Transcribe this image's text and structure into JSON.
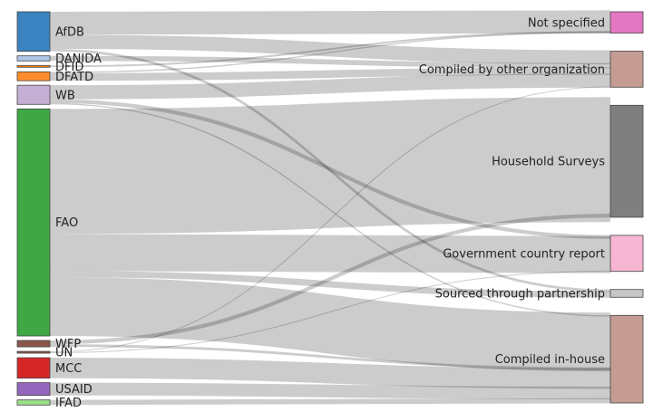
{
  "chart_data": {
    "type": "sankey",
    "sources": [
      {
        "id": "afdb",
        "label": "AfDB",
        "color": "#3b82c0"
      },
      {
        "id": "danida",
        "label": "DANIDA",
        "color": "#aec7e8"
      },
      {
        "id": "dfid",
        "label": "DFID",
        "color": "#ff7f0e"
      },
      {
        "id": "dfatd",
        "label": "DFATD",
        "color": "#ff8c2e"
      },
      {
        "id": "wb",
        "label": "WB",
        "color": "#c5b0d5"
      },
      {
        "id": "fao",
        "label": "FAO",
        "color": "#3fa845"
      },
      {
        "id": "wfp",
        "label": "WFP",
        "color": "#8c564b"
      },
      {
        "id": "un",
        "label": "UN",
        "color": "#8c564b"
      },
      {
        "id": "mcc",
        "label": "MCC",
        "color": "#d62728"
      },
      {
        "id": "usaid",
        "label": "USAID",
        "color": "#9467bd"
      },
      {
        "id": "ifad",
        "label": "IFAD",
        "color": "#98df8a"
      }
    ],
    "targets": [
      {
        "id": "not_specified",
        "label": "Not specified",
        "color": "#e377c2"
      },
      {
        "id": "other_org",
        "label": "Compiled by other organization",
        "color": "#c49c94"
      },
      {
        "id": "household",
        "label": "Household Surveys",
        "color": "#7f7f7f"
      },
      {
        "id": "gov_report",
        "label": "Government country report",
        "color": "#f7b6d2"
      },
      {
        "id": "partnership",
        "label": "Sourced through partnership",
        "color": "#c7c7c7"
      },
      {
        "id": "in_house",
        "label": "Compiled in-house",
        "color": "#c49c94"
      }
    ],
    "links": [
      {
        "source": "afdb",
        "target": "not_specified",
        "value": 18
      },
      {
        "source": "afdb",
        "target": "other_org",
        "value": 11
      },
      {
        "source": "afdb",
        "target": "partnership",
        "value": 2
      },
      {
        "source": "danida",
        "target": "other_org",
        "value": 4
      },
      {
        "source": "dfid",
        "target": "not_specified",
        "value": 0.2
      },
      {
        "source": "dfatd",
        "target": "other_org",
        "value": 6
      },
      {
        "source": "dfatd",
        "target": "not_specified",
        "value": 1
      },
      {
        "source": "wb",
        "target": "other_org",
        "value": 11
      },
      {
        "source": "wb",
        "target": "gov_report",
        "value": 3
      },
      {
        "source": "wb",
        "target": "in_house",
        "value": 1
      },
      {
        "source": "fao",
        "target": "household",
        "value": 98
      },
      {
        "source": "fao",
        "target": "gov_report",
        "value": 29
      },
      {
        "source": "fao",
        "target": "partnership",
        "value": 5
      },
      {
        "source": "fao",
        "target": "in_house",
        "value": 46
      },
      {
        "source": "wfp",
        "target": "household",
        "value": 3
      },
      {
        "source": "wfp",
        "target": "in_house",
        "value": 2
      },
      {
        "source": "un",
        "target": "other_org",
        "value": 0.5
      },
      {
        "source": "un",
        "target": "gov_report",
        "value": 0.5
      },
      {
        "source": "mcc",
        "target": "in_house",
        "value": 16
      },
      {
        "source": "usaid",
        "target": "in_house",
        "value": 10
      },
      {
        "source": "ifad",
        "target": "in_house",
        "value": 4
      }
    ]
  }
}
